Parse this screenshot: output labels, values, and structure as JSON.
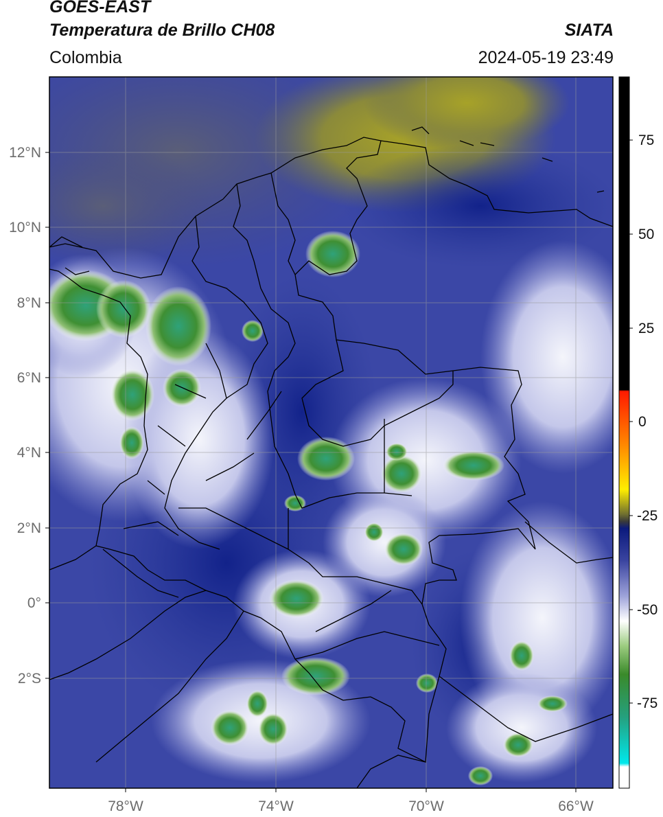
{
  "header": {
    "satellite": "GOES-EAST",
    "product": "Temperatura de Brillo CH08",
    "organization": "SIATA",
    "region": "Colombia",
    "datetime": "2024-05-19 23:49"
  },
  "map": {
    "lat_labels": [
      "12°N",
      "10°N",
      "8°N",
      "6°N",
      "4°N",
      "2°N",
      "0°",
      "2°S"
    ],
    "lon_labels": [
      "78°W",
      "74°W",
      "70°W",
      "66°W"
    ]
  },
  "colorbar": {
    "tick_labels": [
      "75",
      "50",
      "25",
      "0",
      "-25",
      "-50",
      "-75"
    ],
    "colors": {
      "black": "#000000",
      "red": "#ff2a00",
      "orange": "#ff9900",
      "yellow": "#ffff00",
      "olive": "#7a7a30",
      "navy": "#0b1a7d",
      "lavender": "#b9bde6",
      "white": "#ffffff",
      "green": "#3a8a2a",
      "teal": "#1fb08c",
      "cyan": "#00e0e8"
    }
  }
}
